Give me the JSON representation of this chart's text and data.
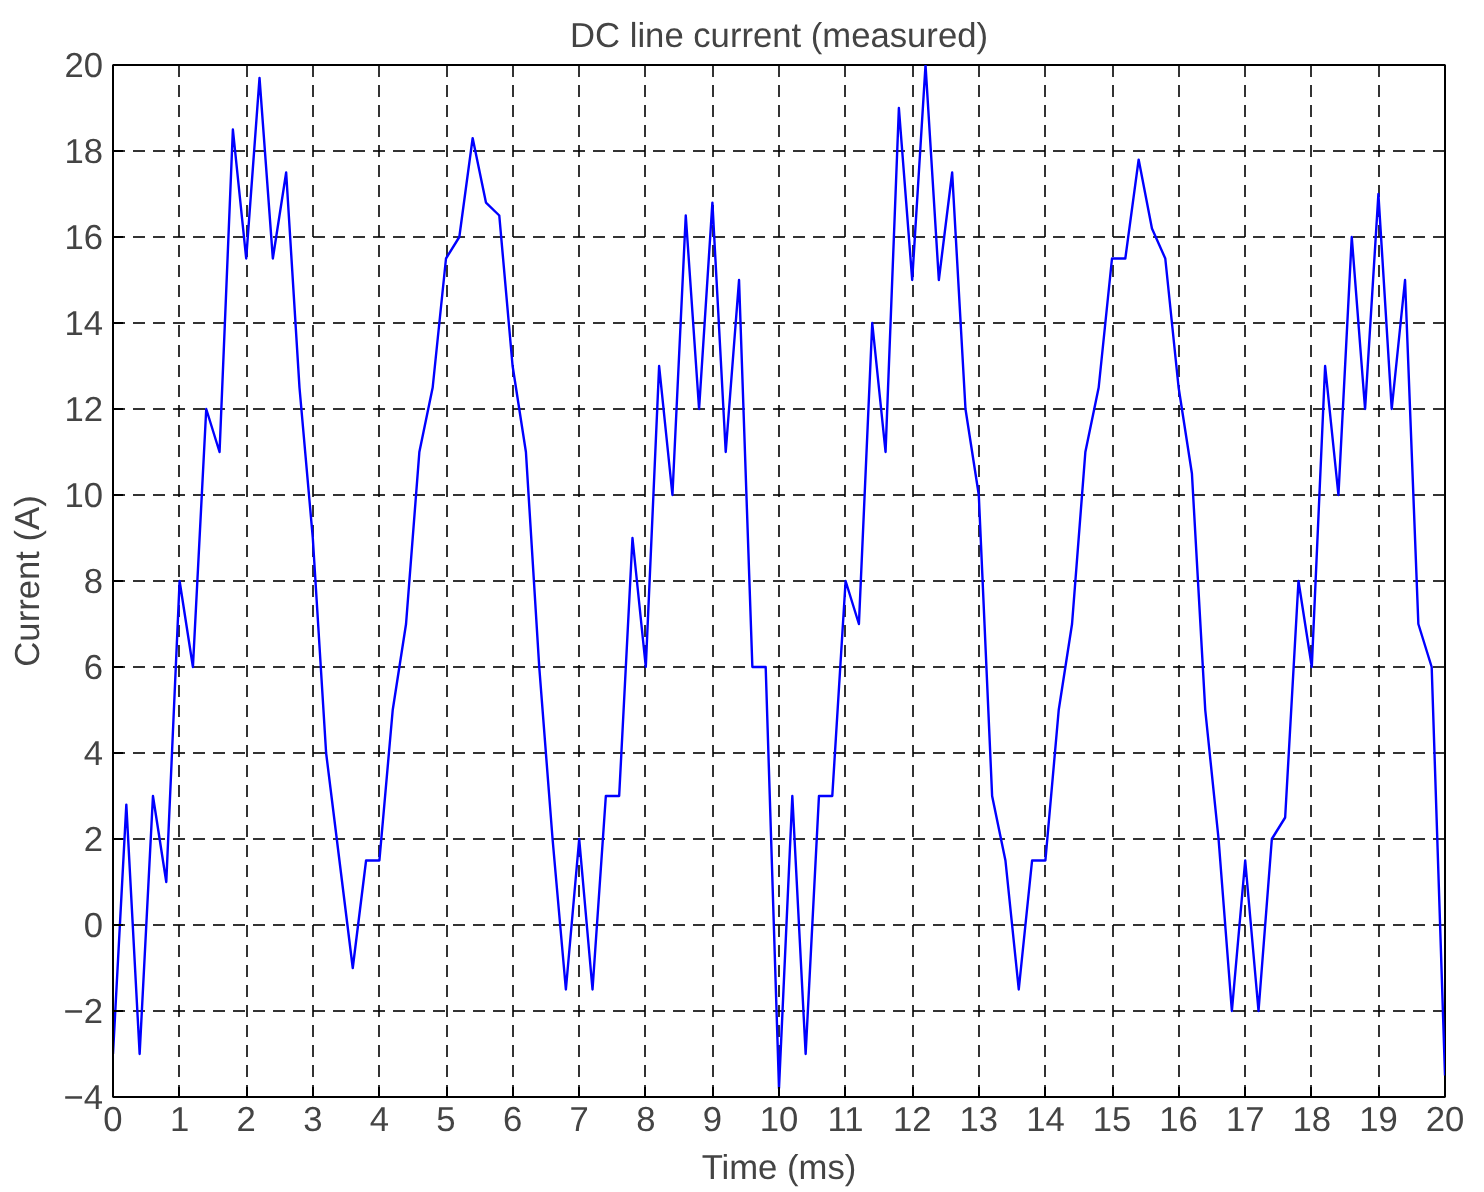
{
  "chart_data": {
    "type": "line",
    "title": "DC line current (measured)",
    "xlabel": "Time (ms)",
    "ylabel": "Current (A)",
    "x": [
      0.0,
      0.2,
      0.4,
      0.6,
      0.8,
      1.0,
      1.2,
      1.4,
      1.6,
      1.8,
      2.0,
      2.2,
      2.4,
      2.6,
      2.8,
      3.0,
      3.2,
      3.4,
      3.6,
      3.8,
      4.0,
      4.2,
      4.4,
      4.6,
      4.8,
      5.0,
      5.2,
      5.4,
      5.6,
      5.8,
      6.0,
      6.2,
      6.4,
      6.6,
      6.8,
      7.0,
      7.2,
      7.4,
      7.6,
      7.8,
      8.0,
      8.2,
      8.4,
      8.6,
      8.8,
      9.0,
      9.2,
      9.4,
      9.6,
      9.8,
      10.0,
      10.2,
      10.4,
      10.6,
      10.8,
      11.0,
      11.2,
      11.4,
      11.6,
      11.8,
      12.0,
      12.2,
      12.4,
      12.6,
      12.8,
      13.0,
      13.2,
      13.4,
      13.6,
      13.8,
      14.0,
      14.2,
      14.4,
      14.6,
      14.8,
      15.0,
      15.2,
      15.4,
      15.6,
      15.8,
      16.0,
      16.2,
      16.4,
      16.6,
      16.8,
      17.0,
      17.2,
      17.4,
      17.6,
      17.8,
      18.0,
      18.2,
      18.4,
      18.6,
      18.8,
      19.0,
      19.2,
      19.4,
      19.6,
      19.8,
      20.0
    ],
    "series": [
      {
        "color": "#0000ff",
        "values": [
          -3,
          2.8,
          -3,
          3,
          1,
          8,
          6,
          12,
          11,
          18.5,
          15.5,
          19.7,
          15.5,
          17.5,
          12.5,
          9,
          4,
          1.5,
          -1,
          1.5,
          1.5,
          5,
          7,
          11,
          12.5,
          15.5,
          16,
          18.3,
          16.8,
          16.5,
          13,
          11,
          6,
          2,
          -1.5,
          2,
          -1.5,
          3,
          3,
          9,
          6,
          13,
          10,
          16.5,
          12,
          16.8,
          11,
          15,
          6,
          6,
          -3.8,
          3,
          -3,
          3,
          3,
          8,
          7,
          14,
          11,
          19,
          15,
          20,
          15,
          17.5,
          12,
          10,
          3,
          1.5,
          -1.5,
          1.5,
          1.5,
          5,
          7,
          11,
          12.5,
          15.5,
          15.5,
          17.8,
          16.2,
          15.5,
          12.5,
          10.5,
          5,
          2,
          -2,
          1.5,
          -2,
          2,
          2.5,
          8,
          6,
          13,
          10,
          16,
          12,
          17,
          12,
          15,
          7,
          6,
          -3.5
        ]
      }
    ],
    "xlim": [
      0,
      20
    ],
    "ylim": [
      -4,
      20
    ],
    "xticks": [
      0,
      1,
      2,
      3,
      4,
      5,
      6,
      7,
      8,
      9,
      10,
      11,
      12,
      13,
      14,
      15,
      16,
      17,
      18,
      19,
      20
    ],
    "yticks": [
      -4,
      -2,
      0,
      2,
      4,
      6,
      8,
      10,
      12,
      14,
      16,
      18,
      20
    ],
    "grid": true,
    "line_style": "solid"
  }
}
